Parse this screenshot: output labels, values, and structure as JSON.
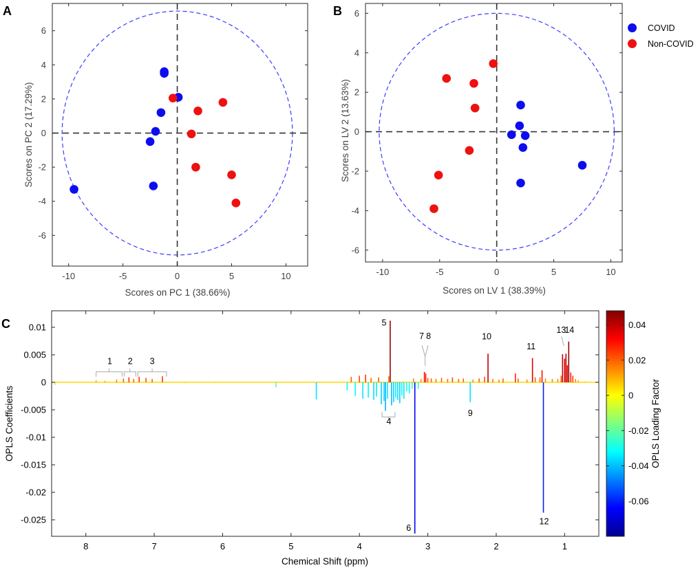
{
  "chart_data": [
    {
      "id": "A",
      "panel_label": "A",
      "type": "scatter",
      "xlabel": "Scores on PC 1 (38.66%)",
      "ylabel": "Scores on PC 2 (17.29%)",
      "xlim": [
        -11.5,
        12.0
      ],
      "ylim": [
        -7.8,
        7.6
      ],
      "xticks": [
        -10,
        -5,
        0,
        5,
        10
      ],
      "yticks": [
        -6,
        -4,
        -2,
        0,
        2,
        4,
        6
      ],
      "ellipse": {
        "cx": 0,
        "cy": 0,
        "rx": 10.6,
        "ry": 7.15
      },
      "series": [
        {
          "name": "COVID",
          "color": "#0d0dee",
          "points": [
            [
              -9.5,
              -3.3
            ],
            [
              -2.2,
              -3.1
            ],
            [
              -2.5,
              -0.5
            ],
            [
              -2.0,
              0.1
            ],
            [
              -1.5,
              1.2
            ],
            [
              -1.2,
              3.5
            ],
            [
              -1.2,
              3.6
            ],
            [
              0.1,
              2.1
            ]
          ]
        },
        {
          "name": "Non-COVID",
          "color": "#ee1111",
          "points": [
            [
              -0.4,
              2.05
            ],
            [
              1.3,
              -0.05
            ],
            [
              1.7,
              -2.0
            ],
            [
              1.9,
              1.3
            ],
            [
              4.2,
              1.8
            ],
            [
              5.0,
              -2.45
            ],
            [
              5.4,
              -4.1
            ]
          ]
        }
      ]
    },
    {
      "id": "B",
      "panel_label": "B",
      "type": "scatter",
      "xlabel": "Scores on LV 1 (38.39%)",
      "ylabel": "Scores on LV 2 (13.63%)",
      "xlim": [
        -11.5,
        11.0
      ],
      "ylim": [
        -6.6,
        6.5
      ],
      "xticks": [
        -10,
        -5,
        0,
        5,
        10
      ],
      "yticks": [
        -6,
        -4,
        -2,
        0,
        2,
        4,
        6
      ],
      "ellipse": {
        "cx": 0,
        "cy": 0,
        "rx": 10.3,
        "ry": 6.0
      },
      "series": [
        {
          "name": "COVID",
          "color": "#0d0dee",
          "points": [
            [
              1.3,
              -0.15
            ],
            [
              2.0,
              0.3
            ],
            [
              2.1,
              1.35
            ],
            [
              2.3,
              -0.8
            ],
            [
              2.5,
              -0.2
            ],
            [
              2.1,
              -2.6
            ],
            [
              7.5,
              -1.7
            ]
          ]
        },
        {
          "name": "Non-COVID",
          "color": "#ee1111",
          "points": [
            [
              -0.3,
              3.45
            ],
            [
              -4.4,
              2.7
            ],
            [
              -2.0,
              2.45
            ],
            [
              -1.9,
              1.2
            ],
            [
              -2.4,
              -0.95
            ],
            [
              -5.1,
              -2.2
            ],
            [
              -5.5,
              -3.9
            ]
          ]
        }
      ]
    },
    {
      "id": "C",
      "panel_label": "C",
      "type": "line",
      "xlabel": "Chemical Shift (ppm)",
      "ylabel": "OPLS Coefficients",
      "colorbar_label": "OPLS Loading Factor",
      "xlim": [
        8.5,
        0.5
      ],
      "ylim": [
        -0.028,
        0.013
      ],
      "xticks": [
        8,
        7,
        6,
        5,
        4,
        3,
        2,
        1
      ],
      "yticks": [
        0.01,
        0.005,
        0,
        -0.005,
        -0.01,
        -0.015,
        -0.02,
        -0.025
      ],
      "ytick_labels": [
        "0.01",
        "0.005",
        "0",
        "-0.005",
        "-0.01",
        "-0.015",
        "-0.02",
        "-0.025"
      ],
      "colorbar_range": [
        -0.08,
        0.048
      ],
      "colorbar_ticks": [
        0.04,
        0.02,
        0,
        -0.02,
        -0.04,
        -0.06
      ],
      "colorbar_tick_labels": [
        "0.04",
        "0.02",
        "0",
        "-0.02",
        "-0.04",
        "-0.06"
      ],
      "peaks": [
        [
          8.45,
          -0.0005,
          -0.01
        ],
        [
          7.85,
          0.0004,
          0.01
        ],
        [
          7.72,
          0.0003,
          0.01
        ],
        [
          7.55,
          0.0005,
          0.015
        ],
        [
          7.45,
          0.0007,
          0.02
        ],
        [
          7.37,
          0.0009,
          0.025
        ],
        [
          7.3,
          0.0006,
          0.02
        ],
        [
          7.22,
          0.001,
          0.025
        ],
        [
          7.12,
          0.0008,
          0.022
        ],
        [
          7.03,
          0.0006,
          0.02
        ],
        [
          6.88,
          0.0011,
          0.025
        ],
        [
          6.55,
          -0.0002,
          -0.005
        ],
        [
          6.1,
          -0.0002,
          -0.005
        ],
        [
          5.22,
          -0.0009,
          -0.02
        ],
        [
          4.63,
          -0.0031,
          -0.035
        ],
        [
          4.18,
          -0.0015,
          -0.03
        ],
        [
          4.12,
          0.001,
          0.02
        ],
        [
          4.06,
          -0.0025,
          -0.032
        ],
        [
          4.0,
          0.0012,
          0.022
        ],
        [
          3.95,
          -0.003,
          -0.035
        ],
        [
          3.91,
          0.0014,
          0.025
        ],
        [
          3.87,
          -0.0028,
          -0.033
        ],
        [
          3.83,
          0.0008,
          0.02
        ],
        [
          3.79,
          -0.0032,
          -0.036
        ],
        [
          3.75,
          -0.0026,
          -0.034
        ],
        [
          3.72,
          0.0009,
          0.02
        ],
        [
          3.68,
          -0.004,
          -0.038
        ],
        [
          3.64,
          -0.0034,
          -0.036
        ],
        [
          3.62,
          -0.0052,
          -0.042
        ],
        [
          3.59,
          -0.003,
          -0.035
        ],
        [
          3.57,
          0.0011,
          0.02
        ],
        [
          3.55,
          0.0112,
          0.045
        ],
        [
          3.53,
          -0.0042,
          -0.04
        ],
        [
          3.5,
          -0.0036,
          -0.037
        ],
        [
          3.47,
          -0.0028,
          -0.034
        ],
        [
          3.44,
          -0.0032,
          -0.036
        ],
        [
          3.41,
          -0.0038,
          -0.038
        ],
        [
          3.38,
          -0.0024,
          -0.032
        ],
        [
          3.35,
          -0.003,
          -0.035
        ],
        [
          3.31,
          -0.0016,
          -0.03
        ],
        [
          3.27,
          -0.002,
          -0.031
        ],
        [
          3.23,
          -0.0012,
          -0.028
        ],
        [
          3.21,
          0.0007,
          0.015
        ],
        [
          3.19,
          -0.0275,
          -0.065
        ],
        [
          3.14,
          -0.0012,
          -0.03
        ],
        [
          3.1,
          0.0006,
          0.015
        ],
        [
          3.05,
          0.0019,
          0.03
        ],
        [
          3.03,
          0.0016,
          0.028
        ],
        [
          3.0,
          0.0008,
          0.02
        ],
        [
          2.95,
          0.0007,
          0.02
        ],
        [
          2.88,
          0.0006,
          0.018
        ],
        [
          2.8,
          0.0008,
          0.02
        ],
        [
          2.71,
          0.0006,
          0.02
        ],
        [
          2.64,
          0.0009,
          0.022
        ],
        [
          2.55,
          0.0006,
          0.02
        ],
        [
          2.48,
          0.0007,
          0.02
        ],
        [
          2.38,
          -0.0036,
          -0.035
        ],
        [
          2.34,
          0.0005,
          0.015
        ],
        [
          2.25,
          0.0007,
          0.02
        ],
        [
          2.17,
          0.001,
          0.022
        ],
        [
          2.12,
          0.0052,
          0.04
        ],
        [
          2.05,
          0.0006,
          0.018
        ],
        [
          1.96,
          0.0005,
          0.015
        ],
        [
          1.9,
          0.0007,
          0.02
        ],
        [
          1.72,
          0.0016,
          0.028
        ],
        [
          1.68,
          0.0007,
          0.02
        ],
        [
          1.55,
          0.0005,
          0.015
        ],
        [
          1.47,
          0.0044,
          0.036
        ],
        [
          1.43,
          0.0009,
          0.02
        ],
        [
          1.36,
          0.0009,
          0.02
        ],
        [
          1.33,
          0.0022,
          0.03
        ],
        [
          1.31,
          -0.0237,
          -0.06
        ],
        [
          1.28,
          0.0007,
          0.015
        ],
        [
          1.18,
          0.0006,
          0.015
        ],
        [
          1.1,
          0.0006,
          0.015
        ],
        [
          1.05,
          0.0012,
          0.022
        ],
        [
          1.03,
          0.0051,
          0.04
        ],
        [
          1.0,
          0.0043,
          0.036
        ],
        [
          0.98,
          0.0052,
          0.04
        ],
        [
          0.96,
          0.0031,
          0.033
        ],
        [
          0.94,
          0.0074,
          0.045
        ],
        [
          0.91,
          0.0018,
          0.028
        ],
        [
          0.88,
          0.0012,
          0.024
        ],
        [
          0.84,
          0.0006,
          0.015
        ],
        [
          0.8,
          0.0004,
          0.01
        ],
        [
          0.7,
          0.0002,
          0.005
        ]
      ],
      "annotations": [
        {
          "label": "1",
          "ppm": 7.65,
          "value": 0.0033,
          "bracket": [
            7.85,
            7.47
          ]
        },
        {
          "label": "2",
          "ppm": 7.35,
          "value": 0.0033,
          "bracket": [
            7.44,
            7.27
          ]
        },
        {
          "label": "3",
          "ppm": 7.03,
          "value": 0.0033,
          "bracket": [
            7.24,
            6.82
          ]
        },
        {
          "label": "4",
          "ppm": 3.57,
          "value": -0.0076,
          "bracket": [
            3.67,
            3.48
          ]
        },
        {
          "label": "5",
          "ppm": 3.64,
          "value": 0.0103
        },
        {
          "label": "6",
          "ppm": 3.28,
          "value": -0.027
        },
        {
          "label": "7",
          "ppm": 3.09,
          "value": 0.0079
        },
        {
          "label": "8",
          "ppm": 2.99,
          "value": 0.0079
        },
        {
          "label": "9",
          "ppm": 2.38,
          "value": -0.0061
        },
        {
          "label": "10",
          "ppm": 2.14,
          "value": 0.0078
        },
        {
          "label": "11",
          "ppm": 1.49,
          "value": 0.006
        },
        {
          "label": "12",
          "ppm": 1.3,
          "value": -0.0258
        },
        {
          "label": "13",
          "ppm": 1.05,
          "value": 0.009
        },
        {
          "label": "14",
          "ppm": 0.93,
          "value": 0.009
        }
      ]
    }
  ],
  "legend": {
    "entries": [
      {
        "label": "COVID",
        "color": "#0d0dee"
      },
      {
        "label": "Non-COVID",
        "color": "#ee1111"
      }
    ]
  }
}
